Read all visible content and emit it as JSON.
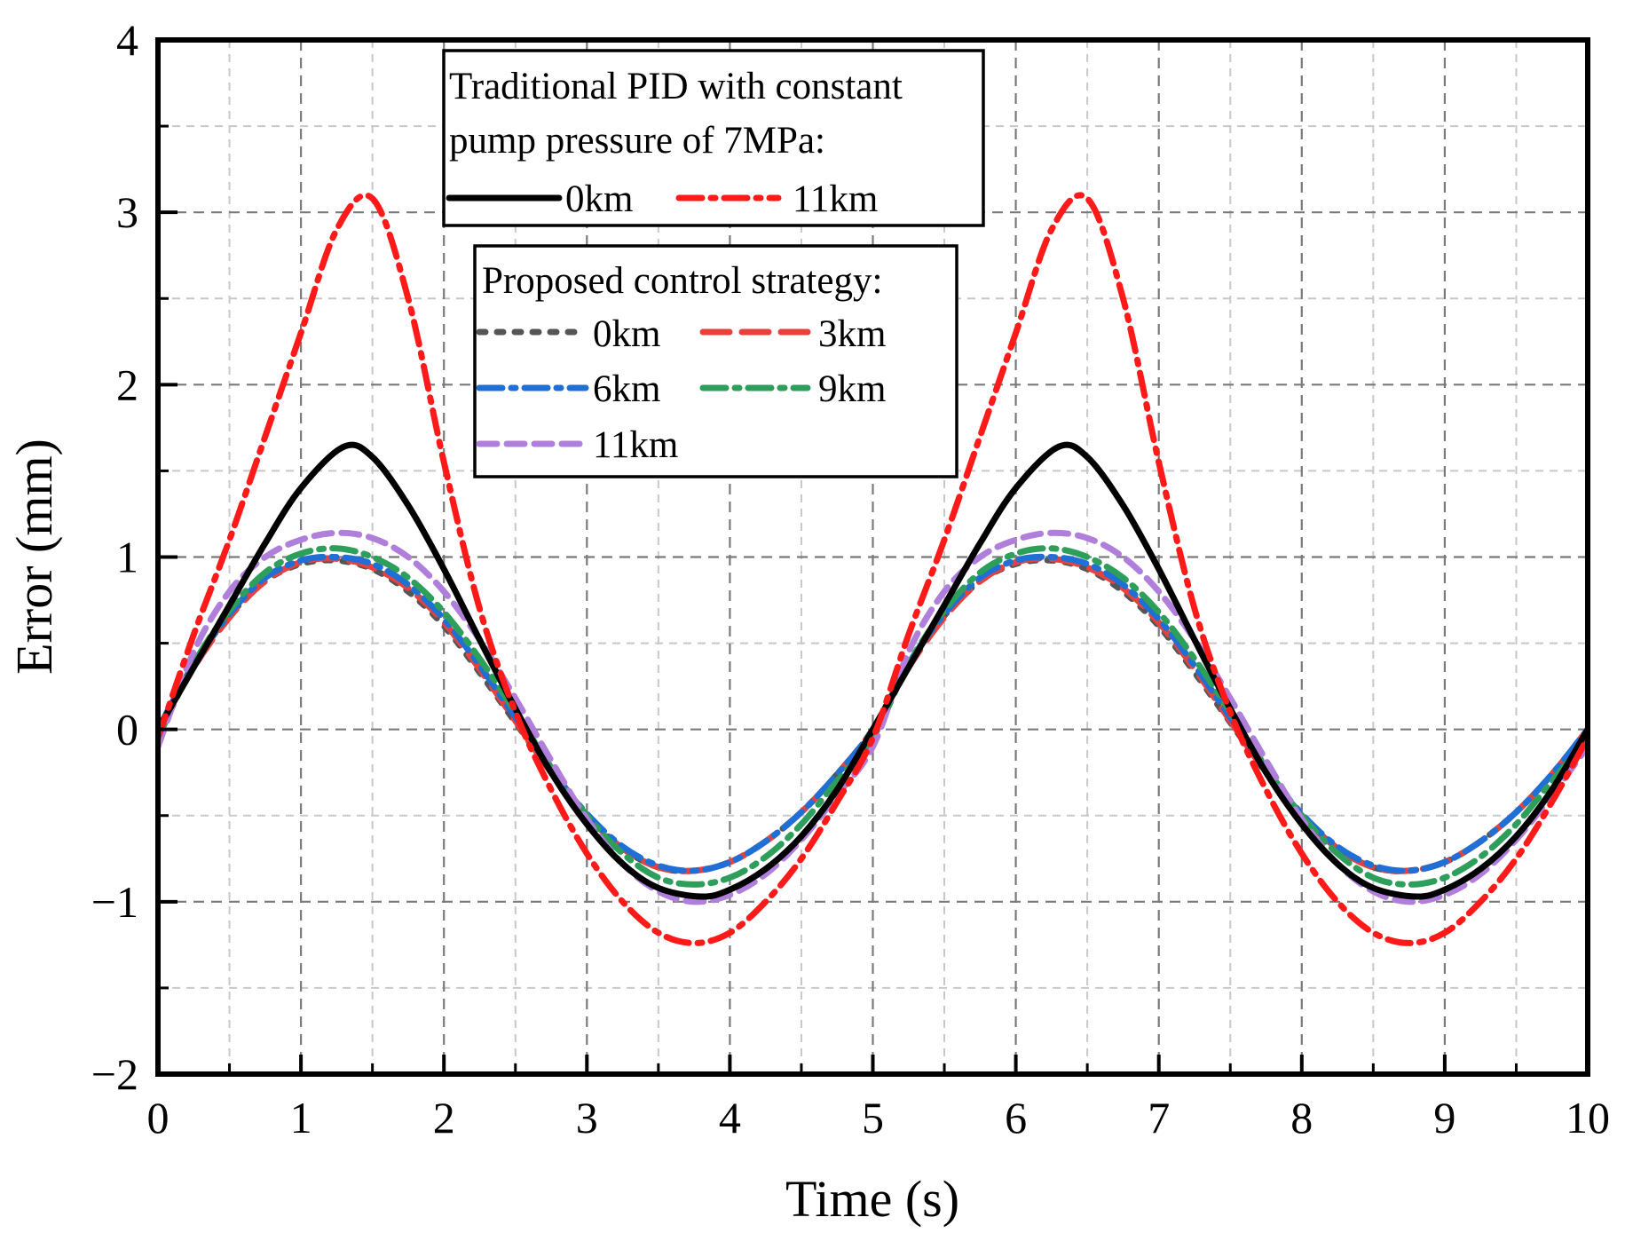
{
  "chart_data": {
    "type": "line",
    "xlabel": "Time (s)",
    "ylabel": "Error (mm)",
    "xlim": [
      0,
      10
    ],
    "ylim": [
      -2,
      4
    ],
    "grid": true,
    "x_ticks": [
      0,
      1,
      2,
      3,
      4,
      5,
      6,
      7,
      8,
      9,
      10
    ],
    "x_tick_labels": [
      "0",
      "1",
      "2",
      "3",
      "4",
      "5",
      "6",
      "7",
      "8",
      "9",
      "10"
    ],
    "y_ticks": [
      -2,
      -1,
      0,
      1,
      2,
      3,
      4
    ],
    "y_tick_labels": [
      "−2",
      "−1",
      "0",
      "1",
      "2",
      "3",
      "4"
    ],
    "legend_placement": "top-center",
    "legend_groups": [
      {
        "title": "Traditional PID with constant pump pressure of 7MPa:",
        "title_lines": [
          "Traditional PID with constant",
          "pump pressure of 7MPa:"
        ],
        "entries": [
          "0km",
          "11km"
        ]
      },
      {
        "title": "Proposed control strategy:",
        "title_lines": [
          "Proposed control strategy:"
        ],
        "entries": [
          "0km",
          "3km",
          "6km",
          "9km",
          "11km"
        ]
      }
    ],
    "series": [
      {
        "name": "Traditional PID 0km",
        "label": "0km",
        "group": 0,
        "color": "#000000",
        "dash": "solid",
        "x": [
          0,
          0.25,
          0.5,
          0.75,
          1.0,
          1.3,
          1.5,
          1.75,
          2.0,
          2.25,
          2.5,
          2.75,
          3.0,
          3.25,
          3.5,
          3.8,
          4.0,
          4.25,
          4.5,
          4.75,
          5.0,
          5.25,
          5.5,
          5.75,
          6.0,
          6.3,
          6.5,
          6.75,
          7.0,
          7.25,
          7.5,
          7.75,
          8.0,
          8.25,
          8.5,
          8.8,
          9.0,
          9.25,
          9.5,
          9.75,
          10.0
        ],
        "y": [
          0,
          0.36,
          0.72,
          1.08,
          1.4,
          1.64,
          1.58,
          1.3,
          0.93,
          0.52,
          0.12,
          -0.25,
          -0.55,
          -0.78,
          -0.92,
          -0.97,
          -0.93,
          -0.81,
          -0.62,
          -0.35,
          0,
          0.36,
          0.72,
          1.08,
          1.4,
          1.64,
          1.58,
          1.3,
          0.93,
          0.52,
          0.12,
          -0.25,
          -0.55,
          -0.78,
          -0.92,
          -0.97,
          -0.93,
          -0.81,
          -0.62,
          -0.35,
          0
        ]
      },
      {
        "name": "Traditional PID 11km",
        "label": "11km",
        "group": 0,
        "color": "#ff1a1a",
        "dash": "dashdot",
        "x": [
          0,
          0.25,
          0.5,
          0.75,
          1.0,
          1.25,
          1.5,
          1.75,
          2.0,
          2.25,
          2.5,
          2.75,
          3.0,
          3.25,
          3.5,
          3.75,
          4.0,
          4.25,
          4.5,
          4.75,
          5.0,
          5.25,
          5.5,
          5.75,
          6.0,
          6.25,
          6.5,
          6.75,
          7.0,
          7.25,
          7.5,
          7.75,
          8.0,
          8.25,
          8.5,
          8.75,
          9.0,
          9.25,
          9.5,
          9.75,
          10.0
        ],
        "y": [
          -0.05,
          0.55,
          1.1,
          1.7,
          2.3,
          2.9,
          3.08,
          2.5,
          1.55,
          0.7,
          0.1,
          -0.35,
          -0.72,
          -1.0,
          -1.18,
          -1.24,
          -1.18,
          -1.0,
          -0.75,
          -0.42,
          -0.05,
          0.55,
          1.1,
          1.7,
          2.3,
          2.9,
          3.08,
          2.5,
          1.55,
          0.7,
          0.1,
          -0.35,
          -0.72,
          -1.0,
          -1.18,
          -1.24,
          -1.18,
          -1.0,
          -0.75,
          -0.42,
          -0.05
        ]
      },
      {
        "name": "Proposed 0km",
        "label": "0km",
        "group": 1,
        "color": "#555555",
        "dash": "dot",
        "x": [
          0,
          0.25,
          0.5,
          0.75,
          1.0,
          1.25,
          1.5,
          1.75,
          2.0,
          2.25,
          2.5,
          2.75,
          3.0,
          3.25,
          3.5,
          3.75,
          4.0,
          4.25,
          4.5,
          4.75,
          5.0,
          5.25,
          5.5,
          5.75,
          6.0,
          6.25,
          6.5,
          6.75,
          7.0,
          7.25,
          7.5,
          7.75,
          8.0,
          8.25,
          8.5,
          8.75,
          9.0,
          9.25,
          9.5,
          9.75,
          10.0
        ],
        "y": [
          0,
          0.38,
          0.66,
          0.86,
          0.96,
          0.98,
          0.93,
          0.8,
          0.6,
          0.33,
          0.04,
          -0.25,
          -0.5,
          -0.69,
          -0.8,
          -0.82,
          -0.77,
          -0.65,
          -0.48,
          -0.26,
          0,
          0.38,
          0.66,
          0.86,
          0.96,
          0.98,
          0.93,
          0.8,
          0.6,
          0.33,
          0.04,
          -0.25,
          -0.5,
          -0.69,
          -0.8,
          -0.82,
          -0.77,
          -0.65,
          -0.48,
          -0.26,
          0
        ]
      },
      {
        "name": "Proposed 3km",
        "label": "3km",
        "group": 1,
        "color": "#e8413c",
        "dash": "longdash",
        "x": [
          0,
          0.25,
          0.5,
          0.75,
          1.0,
          1.25,
          1.5,
          1.75,
          2.0,
          2.25,
          2.5,
          2.75,
          3.0,
          3.25,
          3.5,
          3.75,
          4.0,
          4.25,
          4.5,
          4.75,
          5.0,
          5.25,
          5.5,
          5.75,
          6.0,
          6.25,
          6.5,
          6.75,
          7.0,
          7.25,
          7.5,
          7.75,
          8.0,
          8.25,
          8.5,
          8.75,
          9.0,
          9.25,
          9.5,
          9.75,
          10.0
        ],
        "y": [
          0,
          0.36,
          0.65,
          0.86,
          0.97,
          0.99,
          0.94,
          0.82,
          0.62,
          0.35,
          0.05,
          -0.25,
          -0.5,
          -0.69,
          -0.8,
          -0.82,
          -0.77,
          -0.65,
          -0.48,
          -0.26,
          0,
          0.36,
          0.65,
          0.86,
          0.97,
          0.99,
          0.94,
          0.82,
          0.62,
          0.35,
          0.05,
          -0.25,
          -0.5,
          -0.69,
          -0.8,
          -0.82,
          -0.77,
          -0.65,
          -0.48,
          -0.26,
          0
        ]
      },
      {
        "name": "Proposed 6km",
        "label": "6km",
        "group": 1,
        "color": "#1f6fd6",
        "dash": "dashdot",
        "x": [
          0,
          0.25,
          0.5,
          0.75,
          1.0,
          1.25,
          1.5,
          1.75,
          2.0,
          2.25,
          2.5,
          2.75,
          3.0,
          3.25,
          3.5,
          3.75,
          4.0,
          4.25,
          4.5,
          4.75,
          5.0,
          5.25,
          5.5,
          5.75,
          6.0,
          6.25,
          6.5,
          6.75,
          7.0,
          7.25,
          7.5,
          7.75,
          8.0,
          8.25,
          8.5,
          8.75,
          9.0,
          9.25,
          9.5,
          9.75,
          10.0
        ],
        "y": [
          0,
          0.38,
          0.67,
          0.88,
          0.98,
          1.0,
          0.96,
          0.84,
          0.64,
          0.37,
          0.07,
          -0.23,
          -0.49,
          -0.68,
          -0.79,
          -0.82,
          -0.77,
          -0.65,
          -0.48,
          -0.26,
          0,
          0.38,
          0.67,
          0.88,
          0.98,
          1.0,
          0.96,
          0.84,
          0.64,
          0.37,
          0.07,
          -0.23,
          -0.49,
          -0.68,
          -0.79,
          -0.82,
          -0.77,
          -0.65,
          -0.48,
          -0.26,
          0
        ]
      },
      {
        "name": "Proposed 9km",
        "label": "9km",
        "group": 1,
        "color": "#2e9e5b",
        "dash": "dashdot",
        "x": [
          0,
          0.25,
          0.5,
          0.75,
          1.0,
          1.25,
          1.5,
          1.75,
          2.0,
          2.25,
          2.5,
          2.75,
          3.0,
          3.25,
          3.5,
          3.75,
          4.0,
          4.25,
          4.5,
          4.75,
          5.0,
          5.25,
          5.5,
          5.75,
          6.0,
          6.25,
          6.5,
          6.75,
          7.0,
          7.25,
          7.5,
          7.75,
          8.0,
          8.25,
          8.5,
          8.75,
          9.0,
          9.25,
          9.5,
          9.75,
          10.0
        ],
        "y": [
          -0.05,
          0.38,
          0.69,
          0.91,
          1.02,
          1.05,
          1.0,
          0.88,
          0.68,
          0.41,
          0.1,
          -0.22,
          -0.5,
          -0.72,
          -0.86,
          -0.9,
          -0.86,
          -0.74,
          -0.55,
          -0.3,
          -0.05,
          0.38,
          0.69,
          0.91,
          1.02,
          1.05,
          1.0,
          0.88,
          0.68,
          0.41,
          0.1,
          -0.22,
          -0.5,
          -0.72,
          -0.86,
          -0.9,
          -0.86,
          -0.74,
          -0.55,
          -0.3,
          -0.05
        ]
      },
      {
        "name": "Proposed 11km",
        "label": "11km",
        "group": 1,
        "color": "#b07fdc",
        "dash": "dash",
        "x": [
          0,
          0.25,
          0.5,
          0.75,
          1.0,
          1.25,
          1.5,
          1.75,
          2.0,
          2.25,
          2.5,
          2.75,
          3.0,
          3.25,
          3.5,
          3.75,
          4.0,
          4.25,
          4.5,
          4.75,
          5.0,
          5.25,
          5.5,
          5.75,
          6.0,
          6.25,
          6.5,
          6.75,
          7.0,
          7.25,
          7.5,
          7.75,
          8.0,
          8.25,
          8.5,
          8.75,
          9.0,
          9.25,
          9.5,
          9.75,
          10.0
        ],
        "y": [
          -0.1,
          0.45,
          0.8,
          1.0,
          1.1,
          1.14,
          1.11,
          1.0,
          0.8,
          0.52,
          0.18,
          -0.18,
          -0.52,
          -0.78,
          -0.94,
          -1.0,
          -0.96,
          -0.84,
          -0.64,
          -0.38,
          -0.1,
          0.45,
          0.8,
          1.0,
          1.1,
          1.14,
          1.11,
          1.0,
          0.8,
          0.52,
          0.18,
          -0.18,
          -0.52,
          -0.78,
          -0.94,
          -1.0,
          -0.96,
          -0.84,
          -0.64,
          -0.38,
          -0.1
        ]
      }
    ]
  }
}
